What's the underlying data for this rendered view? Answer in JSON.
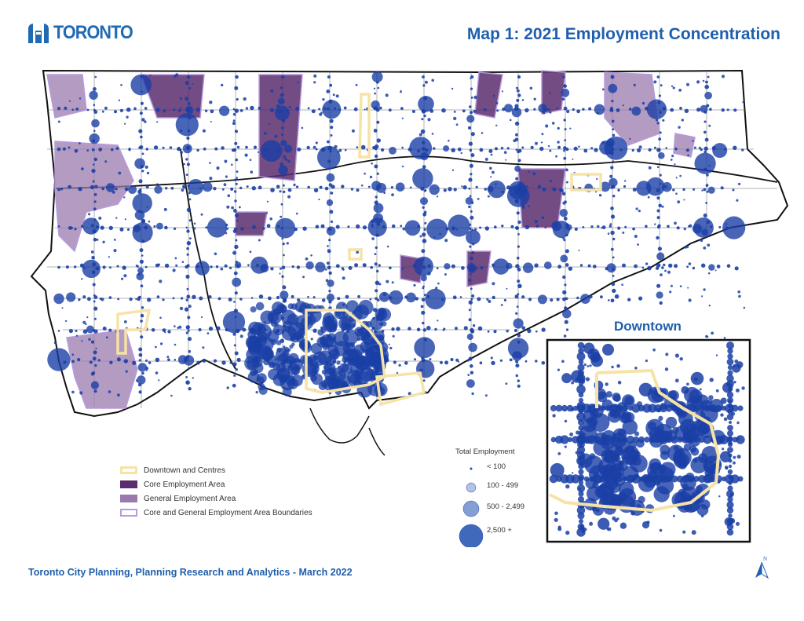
{
  "logo": {
    "text": "TORONTO",
    "icon": "city-hall-icon"
  },
  "title": "Map 1: 2021 Employment Concentration",
  "inset": {
    "label": "Downtown"
  },
  "legend": {
    "items": [
      {
        "label": "Downtown and Centres",
        "color": "#f6e3a7",
        "style": "outline"
      },
      {
        "label": "Core Employment Area",
        "color": "#5b2d6e",
        "style": "fill"
      },
      {
        "label": "General Employment Area",
        "color": "#9a7aae",
        "style": "fill"
      },
      {
        "label": "Core and General Employment Area Boundaries",
        "color": "#b79be0",
        "style": "outline"
      }
    ]
  },
  "size_legend": {
    "title": "Total Employment",
    "classes": [
      {
        "label": "< 100"
      },
      {
        "label": "100 - 499"
      },
      {
        "label": "500 - 2,499"
      },
      {
        "label": "2,500 +"
      }
    ],
    "color": "#1f4fb0"
  },
  "footer": "Toronto City Planning, Planning Research and Analytics - March 2022",
  "north_arrow": {
    "label": "N",
    "icon": "north-arrow-icon"
  },
  "colors": {
    "accent": "#1f5fad",
    "dots": "#1a3fa6",
    "core": "#5b2d6e",
    "general": "#9a7aae",
    "boundary": "#b79be0",
    "centres": "#f6e3a7"
  }
}
